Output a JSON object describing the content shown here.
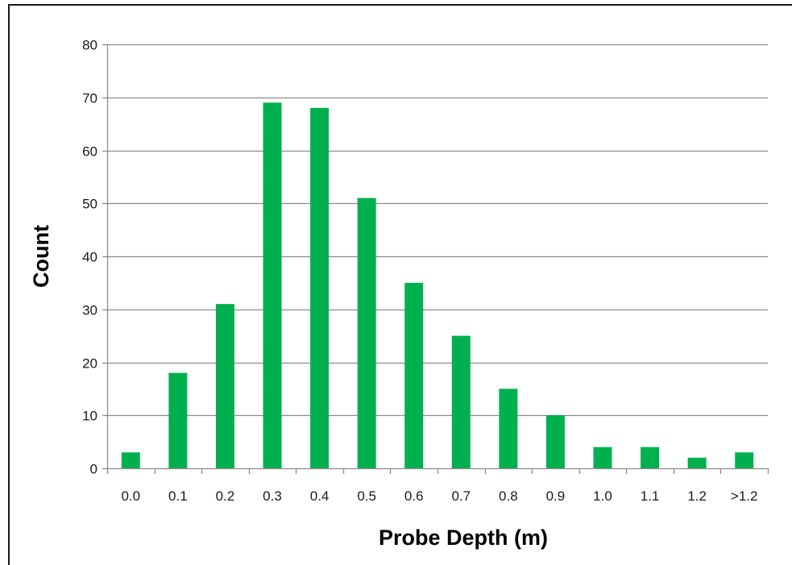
{
  "chart_data": {
    "type": "bar",
    "title": "",
    "xlabel": "Probe Depth (m)",
    "ylabel": "Count",
    "categories": [
      "0.0",
      "0.1",
      "0.2",
      "0.3",
      "0.4",
      "0.5",
      "0.6",
      "0.7",
      "0.8",
      "0.9",
      "1.0",
      "1.1",
      "1.2",
      ">1.2"
    ],
    "values": [
      3,
      18,
      31,
      69,
      68,
      51,
      35,
      25,
      15,
      10,
      4,
      4,
      2,
      3
    ],
    "ylim": [
      0,
      80
    ],
    "yticks": [
      0,
      10,
      20,
      30,
      40,
      50,
      60,
      70,
      80
    ],
    "ytick_labels": [
      "0",
      "10",
      "20",
      "30",
      "40",
      "50",
      "60",
      "70",
      "80"
    ],
    "grid": "horizontal",
    "legend": "none",
    "colors": {
      "bar": "#00b04f",
      "grid": "#8c8c8c",
      "axis": "#8c8c8c",
      "text": "#1a1a1a"
    }
  }
}
